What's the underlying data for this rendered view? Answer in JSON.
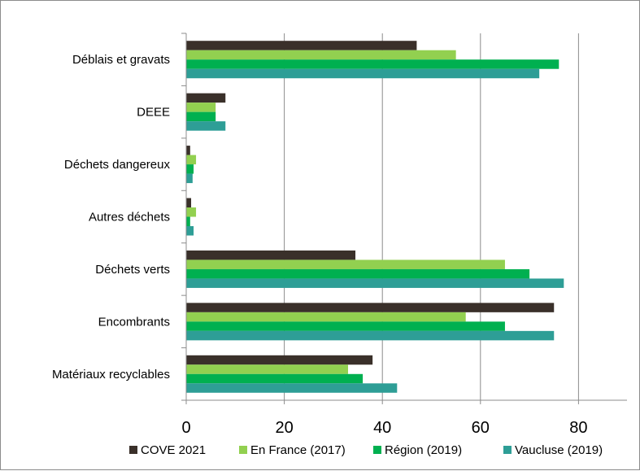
{
  "chart_data": {
    "type": "bar",
    "orientation": "horizontal",
    "categories": [
      "Déblais et gravats",
      "DEEE",
      "Déchets dangereux",
      "Autres déchets",
      "Déchets verts",
      "Encombrants",
      "Matériaux recyclables"
    ],
    "series": [
      {
        "name": "COVE 2021",
        "color": "#3a302a",
        "values": [
          47,
          8,
          0.8,
          1,
          34.5,
          75,
          38
        ]
      },
      {
        "name": "En France (2017)",
        "color": "#92d050",
        "values": [
          55,
          6,
          2,
          2,
          65,
          57,
          33
        ]
      },
      {
        "name": "Région (2019)",
        "color": "#00b050",
        "values": [
          76,
          6,
          1.5,
          0.8,
          70,
          65,
          36
        ]
      },
      {
        "name": "Vaucluse (2019)",
        "color": "#2e9e96",
        "values": [
          72,
          8,
          1.3,
          1.5,
          77,
          75,
          43
        ]
      }
    ],
    "xlim": [
      0,
      90
    ],
    "xticks": [
      0,
      20,
      40,
      60,
      80
    ],
    "grid": true,
    "legend": "bottom",
    "title": "",
    "xlabel": "",
    "ylabel": ""
  }
}
